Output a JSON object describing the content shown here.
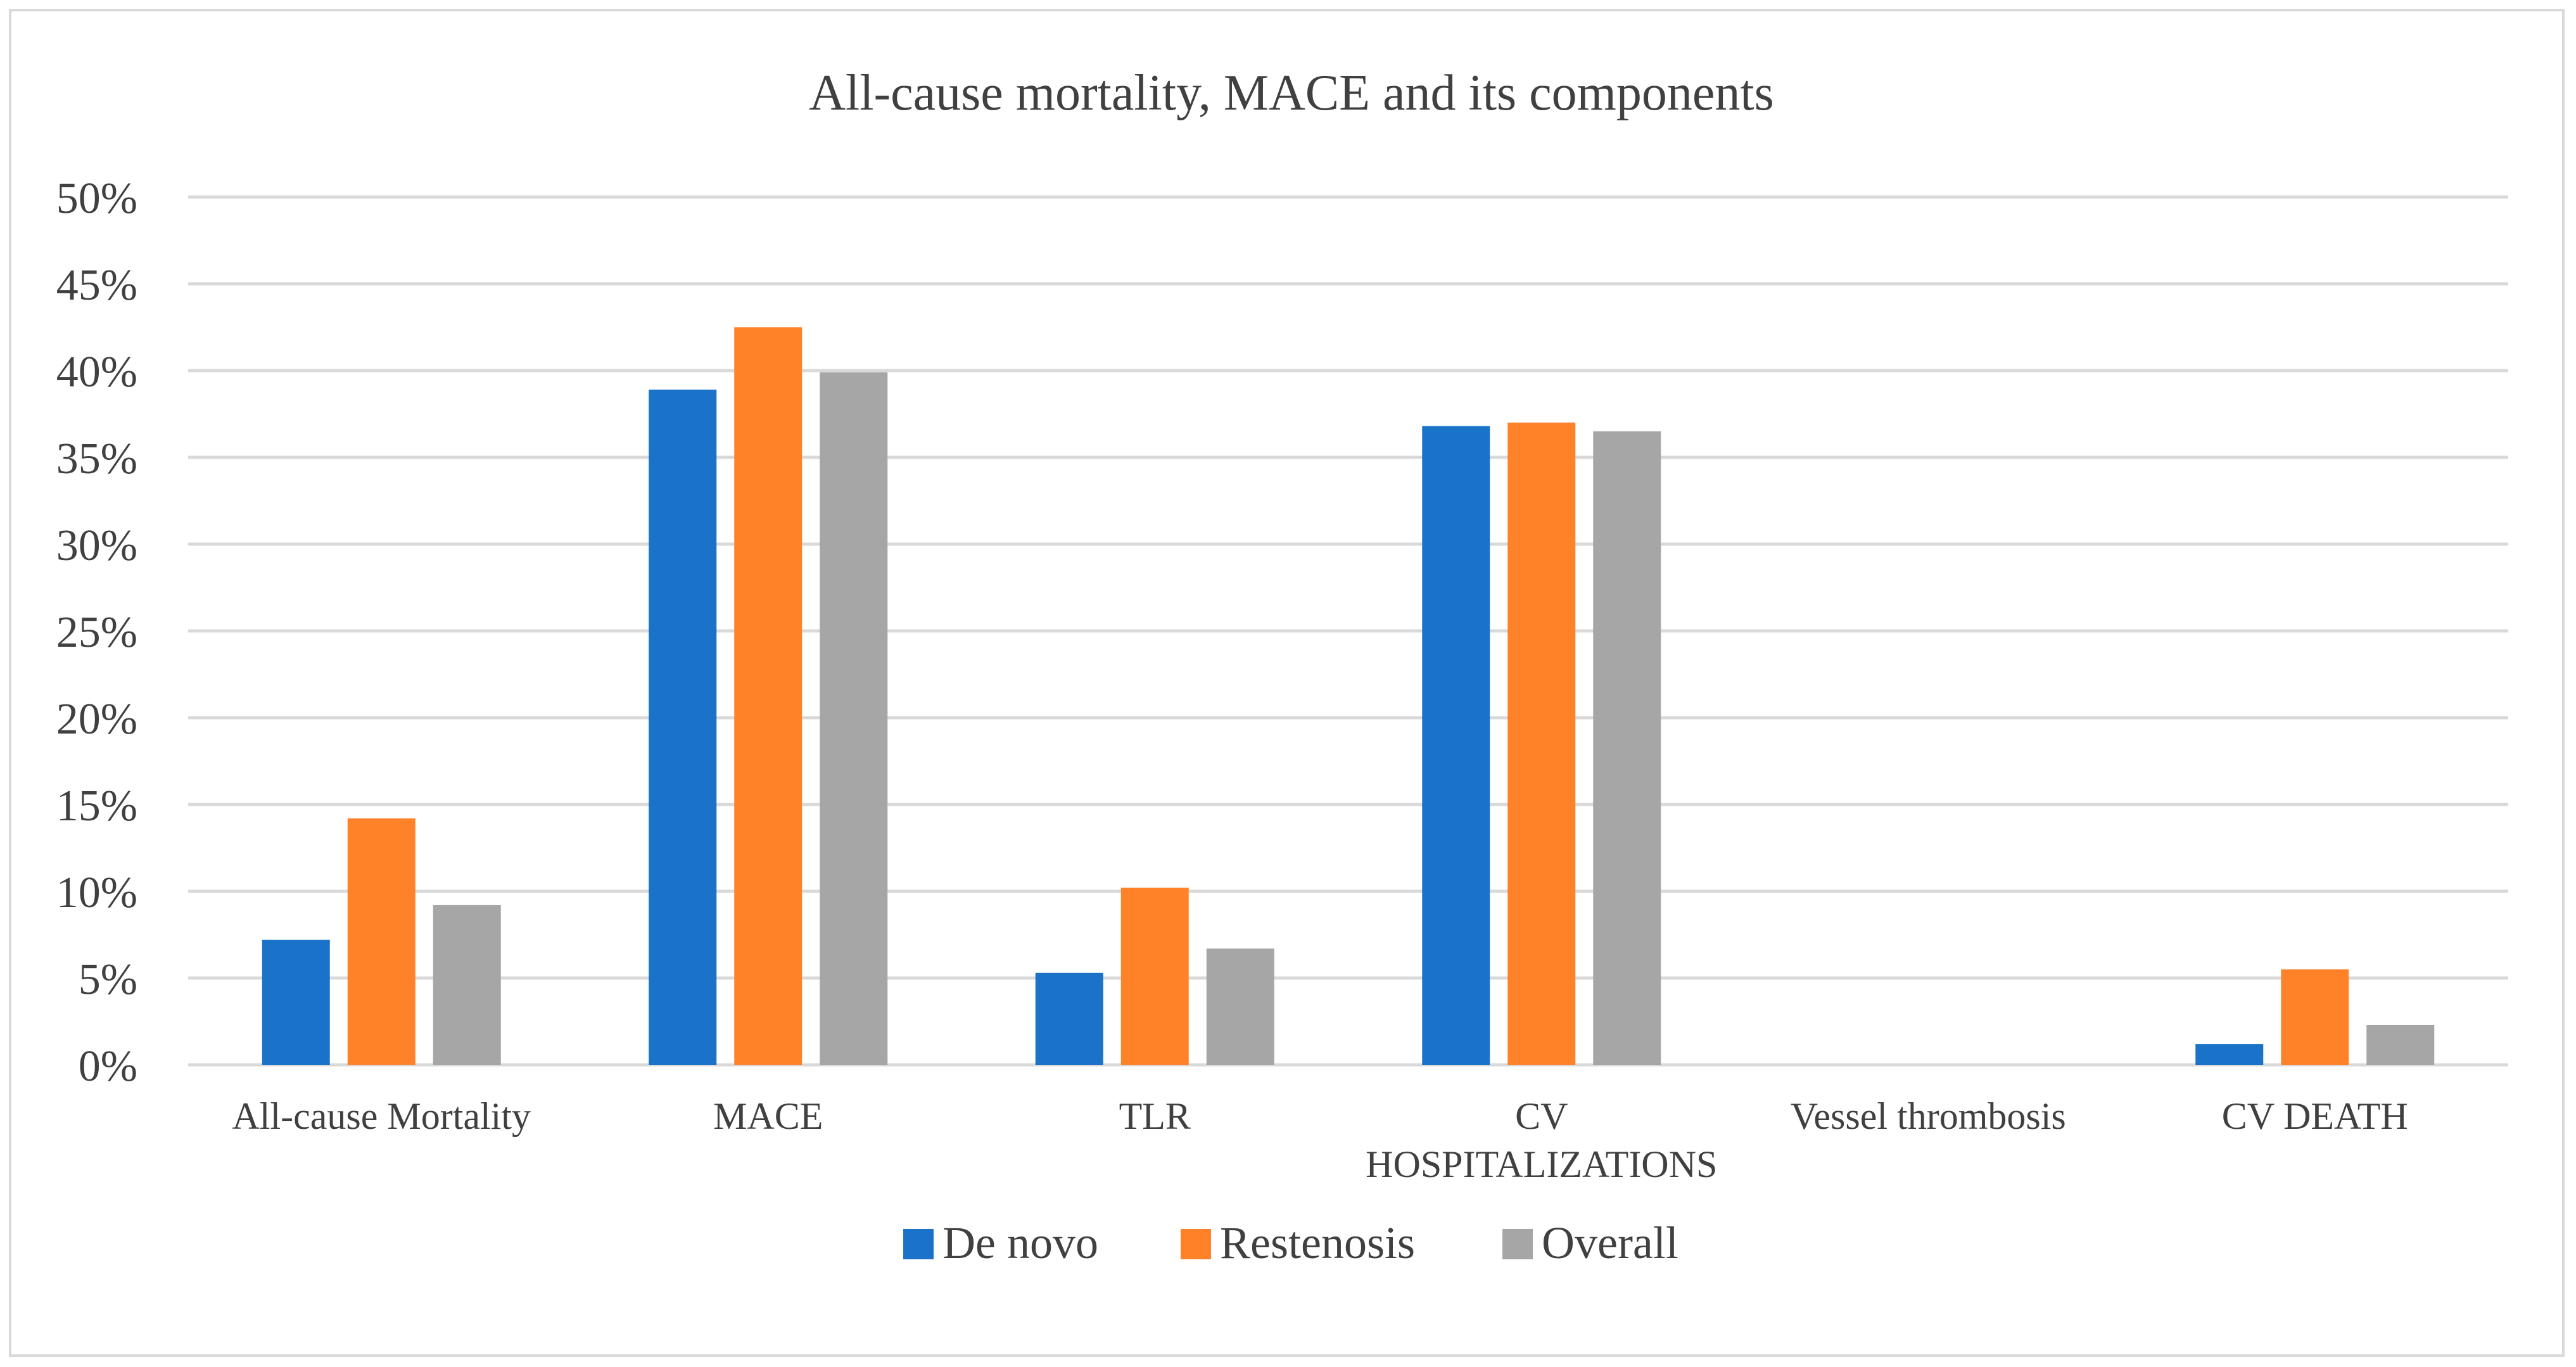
{
  "chart_data": {
    "type": "bar",
    "title": "All-cause mortality, MACE and its components",
    "xlabel": "",
    "ylabel": "",
    "ylim": [
      0,
      50
    ],
    "y_tick_step": 5,
    "y_tick_labels": [
      "0%",
      "5%",
      "10%",
      "15%",
      "20%",
      "25%",
      "30%",
      "35%",
      "40%",
      "45%",
      "50%"
    ],
    "grid": true,
    "legend_position": "bottom",
    "categories": [
      [
        "All-cause Mortality"
      ],
      [
        "MACE"
      ],
      [
        "TLR"
      ],
      [
        "CV",
        "HOSPITALIZATIONS"
      ],
      [
        "Vessel thrombosis"
      ],
      [
        "CV DEATH"
      ]
    ],
    "series": [
      {
        "name": "De novo",
        "color": "#1a72c9",
        "values": [
          7.2,
          38.9,
          5.3,
          36.8,
          0,
          1.2
        ]
      },
      {
        "name": "Restenosis",
        "color": "#ff8229",
        "values": [
          14.2,
          42.5,
          10.2,
          37.0,
          0,
          5.5
        ]
      },
      {
        "name": "Overall",
        "color": "#a6a6a6",
        "values": [
          9.2,
          39.9,
          6.7,
          36.5,
          0,
          2.3
        ]
      }
    ]
  }
}
